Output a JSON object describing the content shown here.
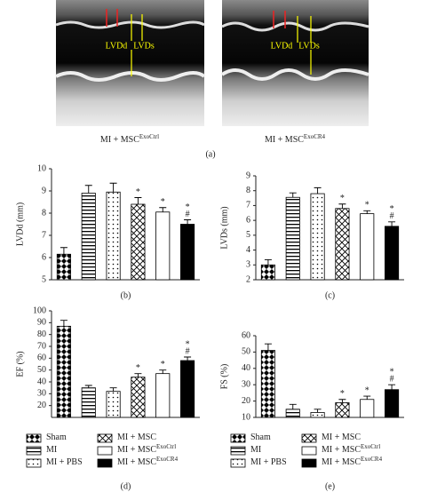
{
  "panel_a": {
    "label": "(a)",
    "images": [
      {
        "caption": "MI + MSC",
        "sup": "ExoCtrl",
        "labels": [
          "LVDd",
          "LVDs"
        ]
      },
      {
        "caption": "MI + MSC",
        "sup": "ExoCR4",
        "labels": [
          "LVDd",
          "LVDs"
        ]
      }
    ]
  },
  "chart_data": [
    {
      "type": "bar",
      "panel": "(b)",
      "ylabel": "LVDd (mm)",
      "values": [
        6.15,
        8.9,
        8.95,
        8.4,
        8.05,
        7.5
      ],
      "errors": [
        0.3,
        0.35,
        0.4,
        0.3,
        0.2,
        0.2
      ],
      "annotations": [
        [],
        [],
        [],
        [
          "*"
        ],
        [
          "*"
        ],
        [
          "#",
          "*"
        ]
      ],
      "patterns": [
        "checker",
        "hlines",
        "dots",
        "diag",
        "white",
        "black"
      ],
      "ylim": [
        5,
        10
      ],
      "yticks": [
        5,
        6,
        7,
        8,
        9,
        10
      ]
    },
    {
      "type": "bar",
      "panel": "(c)",
      "ylabel": "LVDs (mm)",
      "values": [
        3.0,
        7.55,
        7.8,
        6.8,
        6.45,
        5.6
      ],
      "errors": [
        0.35,
        0.3,
        0.4,
        0.3,
        0.2,
        0.3
      ],
      "annotations": [
        [],
        [],
        [],
        [
          "*"
        ],
        [
          "*"
        ],
        [
          "#",
          "*"
        ]
      ],
      "patterns": [
        "checker",
        "hlines",
        "dots",
        "diag",
        "white",
        "black"
      ],
      "ylim": [
        2,
        9
      ],
      "yticks": [
        2,
        3,
        4,
        5,
        6,
        7,
        8,
        9
      ]
    },
    {
      "type": "bar",
      "panel": "(d)",
      "ylabel": "EF (%)",
      "values": [
        87,
        35,
        32,
        44,
        47,
        58
      ],
      "errors": [
        5,
        2,
        3,
        3,
        3,
        3
      ],
      "annotations": [
        [],
        [],
        [],
        [
          "*"
        ],
        [
          "*"
        ],
        [
          "#",
          "*"
        ]
      ],
      "patterns": [
        "checker",
        "hlines",
        "dots",
        "diag",
        "white",
        "black"
      ],
      "categories": [
        "Sham",
        "MI",
        "MI + PBS",
        "MI + MSC",
        "MI + MSC",
        "MI + MSC"
      ],
      "superscripts": [
        null,
        null,
        null,
        null,
        "ExoCtrl",
        "ExoCR4"
      ],
      "ylim": [
        10,
        100
      ],
      "yticks": [
        20,
        30,
        40,
        50,
        60,
        70,
        80,
        90,
        100
      ]
    },
    {
      "type": "bar",
      "panel": "(e)",
      "ylabel": "FS (%)",
      "values": [
        51,
        15,
        13,
        19,
        21,
        27
      ],
      "errors": [
        4,
        3,
        2,
        2,
        2,
        3
      ],
      "annotations": [
        [],
        [],
        [],
        [
          "*"
        ],
        [
          "*"
        ],
        [
          "#",
          "*"
        ]
      ],
      "patterns": [
        "checker",
        "hlines",
        "dots",
        "diag",
        "white",
        "black"
      ],
      "categories": [
        "Sham",
        "MI",
        "MI + PBS",
        "MI + MSC",
        "MI + MSC",
        "MI + MSC"
      ],
      "superscripts": [
        null,
        null,
        null,
        null,
        "ExoCtrl",
        "ExoCR4"
      ],
      "ylim": [
        10,
        60
      ],
      "yticks": [
        10,
        20,
        30,
        40,
        50,
        60
      ]
    }
  ]
}
